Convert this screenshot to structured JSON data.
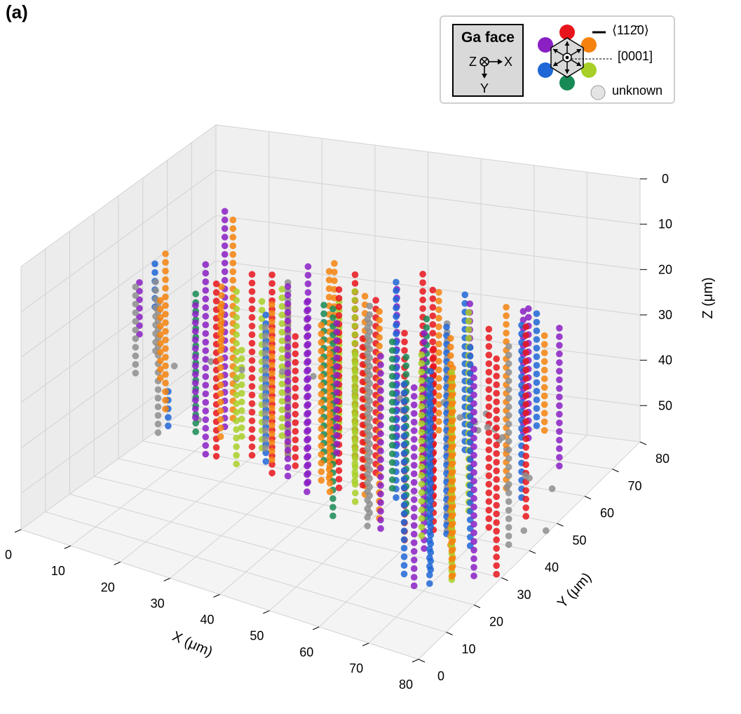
{
  "panel_label": "(a)",
  "legend": {
    "face_title": "Ga face",
    "axis_z": "Z",
    "axis_x": "X",
    "axis_y": "Y",
    "direction_label": "⟨112̄0⟩",
    "zone_label": "[0001]",
    "unknown_label": "unknown",
    "orientation_colors": {
      "top": "#e8141b",
      "top_right": "#f5820d",
      "bottom_right": "#a8cf27",
      "bottom": "#178a55",
      "bottom_left": "#1f66d6",
      "top_left": "#8a1fc4",
      "unknown": "#8e8e8e"
    }
  },
  "chart_data": {
    "type": "scatter",
    "projection": "3d",
    "title": "",
    "xlabel": "X (μm)",
    "ylabel": "Y (μm)",
    "zlabel": "Z (μm)",
    "xlim": [
      0,
      80
    ],
    "ylim": [
      0,
      80
    ],
    "zlim": [
      0,
      58
    ],
    "z_inverted": true,
    "grid": true,
    "x_ticks": [
      "0",
      "10",
      "20",
      "30",
      "40",
      "50",
      "60",
      "70",
      "80"
    ],
    "y_ticks": [
      "0",
      "10",
      "20",
      "30",
      "40",
      "50",
      "60",
      "70",
      "80"
    ],
    "z_ticks": [
      "0",
      "10",
      "20",
      "30",
      "40",
      "50"
    ],
    "point_spacing_z": 1.9,
    "series_colors": {
      "red": "#e8141b",
      "orange": "#f5820d",
      "yellow_green": "#a8cf27",
      "green": "#178a55",
      "blue": "#1f66d6",
      "purple": "#8a1fc4",
      "unknown": "#8e8e8e"
    },
    "threads": [
      {
        "x": 2,
        "y": 52,
        "z0": 28,
        "z1": 58,
        "color": "unknown"
      },
      {
        "x": 3,
        "y": 54,
        "z0": 48,
        "z1": 57,
        "color": "blue"
      },
      {
        "x": 6,
        "y": 36,
        "z0": 16,
        "z1": 28,
        "color": "purple"
      },
      {
        "x": 12,
        "y": 58,
        "z0": 8,
        "z1": 56,
        "color": "purple"
      },
      {
        "x": 15,
        "y": 55,
        "z0": 8,
        "z1": 52,
        "color": "orange"
      },
      {
        "x": 10,
        "y": 34,
        "z0": 10,
        "z1": 20,
        "color": "blue"
      },
      {
        "x": 16,
        "y": 42,
        "z0": 12,
        "z1": 54,
        "color": "purple"
      },
      {
        "x": 14,
        "y": 30,
        "z0": 5,
        "z1": 40,
        "color": "orange"
      },
      {
        "x": 22,
        "y": 60,
        "z0": 24,
        "z1": 58,
        "color": "yellow_green"
      },
      {
        "x": 23,
        "y": 50,
        "z0": 22,
        "z1": 56,
        "color": "yellow_green"
      },
      {
        "x": 30,
        "y": 66,
        "z0": 28,
        "z1": 58,
        "color": "yellow_green"
      },
      {
        "x": 24,
        "y": 40,
        "z0": 28,
        "z1": 48,
        "color": "yellow_green"
      },
      {
        "x": 28,
        "y": 50,
        "z0": 22,
        "z1": 56,
        "color": "orange"
      },
      {
        "x": 26,
        "y": 28,
        "z0": 8,
        "z1": 22,
        "color": "orange"
      },
      {
        "x": 22,
        "y": 10,
        "z0": 0,
        "z1": 16,
        "color": "unknown"
      },
      {
        "x": 34,
        "y": 56,
        "z0": 14,
        "z1": 58,
        "color": "orange"
      },
      {
        "x": 36,
        "y": 60,
        "z0": 18,
        "z1": 58,
        "color": "red"
      },
      {
        "x": 32,
        "y": 42,
        "z0": 12,
        "z1": 50,
        "color": "unknown"
      },
      {
        "x": 38,
        "y": 46,
        "z0": 10,
        "z1": 56,
        "color": "orange"
      },
      {
        "x": 42,
        "y": 64,
        "z0": 22,
        "z1": 58,
        "color": "purple"
      },
      {
        "x": 40,
        "y": 40,
        "z0": 14,
        "z1": 50,
        "color": "green"
      },
      {
        "x": 46,
        "y": 72,
        "z0": 26,
        "z1": 58,
        "color": "orange"
      },
      {
        "x": 44,
        "y": 52,
        "z0": 18,
        "z1": 56,
        "color": "red"
      },
      {
        "x": 42,
        "y": 30,
        "z0": 0,
        "z1": 48,
        "color": "purple"
      },
      {
        "x": 38,
        "y": 24,
        "z0": 0,
        "z1": 44,
        "color": "red"
      },
      {
        "x": 40,
        "y": 20,
        "z0": 4,
        "z1": 40,
        "color": "orange"
      },
      {
        "x": 46,
        "y": 34,
        "z0": 6,
        "z1": 50,
        "color": "red"
      },
      {
        "x": 48,
        "y": 40,
        "z0": 10,
        "z1": 54,
        "color": "orange"
      },
      {
        "x": 50,
        "y": 58,
        "z0": 14,
        "z1": 58,
        "color": "red"
      },
      {
        "x": 52,
        "y": 44,
        "z0": 8,
        "z1": 56,
        "color": "blue"
      },
      {
        "x": 50,
        "y": 24,
        "z0": 4,
        "z1": 50,
        "color": "green"
      },
      {
        "x": 48,
        "y": 18,
        "z0": 0,
        "z1": 42,
        "color": "purple"
      },
      {
        "x": 54,
        "y": 66,
        "z0": 22,
        "z1": 58,
        "color": "blue"
      },
      {
        "x": 56,
        "y": 30,
        "z0": 6,
        "z1": 52,
        "color": "orange"
      },
      {
        "x": 56,
        "y": 50,
        "z0": 12,
        "z1": 58,
        "color": "red"
      },
      {
        "x": 58,
        "y": 60,
        "z0": 20,
        "z1": 58,
        "color": "purple"
      },
      {
        "x": 60,
        "y": 40,
        "z0": 12,
        "z1": 56,
        "color": "green"
      },
      {
        "x": 60,
        "y": 18,
        "z0": 0,
        "z1": 46,
        "color": "unknown"
      },
      {
        "x": 62,
        "y": 28,
        "z0": 8,
        "z1": 54,
        "color": "red"
      },
      {
        "x": 60,
        "y": 76,
        "z0": 30,
        "z1": 58,
        "color": "purple"
      },
      {
        "x": 61,
        "y": 79,
        "z0": 32,
        "z1": 58,
        "color": "blue"
      },
      {
        "x": 62,
        "y": 74,
        "z0": 28,
        "z1": 58,
        "color": "purple"
      },
      {
        "x": 63,
        "y": 78,
        "z0": 36,
        "z1": 58,
        "color": "orange"
      },
      {
        "x": 58,
        "y": 20,
        "z0": 6,
        "z1": 40,
        "color": "red"
      },
      {
        "x": 56,
        "y": 14,
        "z0": 0,
        "z1": 30,
        "color": "purple"
      },
      {
        "x": 64,
        "y": 48,
        "z0": 14,
        "z1": 58,
        "color": "yellow_green"
      },
      {
        "x": 66,
        "y": 36,
        "z0": 10,
        "z1": 56,
        "color": "blue"
      },
      {
        "x": 66,
        "y": 58,
        "z0": 18,
        "z1": 58,
        "color": "orange"
      },
      {
        "x": 68,
        "y": 24,
        "z0": 4,
        "z1": 52,
        "color": "purple"
      },
      {
        "x": 66,
        "y": 16,
        "z0": 2,
        "z1": 36,
        "color": "green"
      },
      {
        "x": 70,
        "y": 44,
        "z0": 14,
        "z1": 58,
        "color": "red"
      },
      {
        "x": 72,
        "y": 66,
        "z0": 26,
        "z1": 58,
        "color": "purple"
      },
      {
        "x": 70,
        "y": 30,
        "z0": 8,
        "z1": 54,
        "color": "orange"
      },
      {
        "x": 72,
        "y": 20,
        "z0": 4,
        "z1": 44,
        "color": "red"
      },
      {
        "x": 74,
        "y": 50,
        "z0": 16,
        "z1": 58,
        "color": "red"
      },
      {
        "x": 74,
        "y": 12,
        "z0": 0,
        "z1": 40,
        "color": "yellow_green"
      },
      {
        "x": 76,
        "y": 26,
        "z0": 6,
        "z1": 50,
        "color": "blue"
      },
      {
        "x": 72,
        "y": 10,
        "z0": 0,
        "z1": 36,
        "color": "green"
      },
      {
        "x": 76,
        "y": 40,
        "z0": 14,
        "z1": 58,
        "color": "unknown"
      },
      {
        "x": 78,
        "y": 8,
        "z0": 0,
        "z1": 44,
        "color": "blue"
      },
      {
        "x": 78,
        "y": 16,
        "z0": 4,
        "z1": 50,
        "color": "orange"
      },
      {
        "x": 80,
        "y": 4,
        "z0": 0,
        "z1": 44,
        "color": "blue"
      },
      {
        "x": 79,
        "y": 30,
        "z0": 10,
        "z1": 58,
        "color": "red"
      },
      {
        "x": 80,
        "y": 20,
        "z0": 6,
        "z1": 52,
        "color": "purple"
      },
      {
        "x": 78,
        "y": 2,
        "z0": 0,
        "z1": 44,
        "color": "purple"
      },
      {
        "x": 80,
        "y": 12,
        "z0": 2,
        "z1": 48,
        "color": "yellow_green"
      },
      {
        "x": 76,
        "y": 2,
        "z0": 0,
        "z1": 42,
        "color": "blue"
      },
      {
        "x": 82,
        "y": 10,
        "z0": 2,
        "z1": 46,
        "color": "orange"
      },
      {
        "x": 60,
        "y": 4,
        "z0": 0,
        "z1": 32,
        "color": "orange"
      },
      {
        "x": 64,
        "y": 6,
        "z0": 0,
        "z1": 34,
        "color": "yellow_green"
      },
      {
        "x": 68,
        "y": 8,
        "z0": 0,
        "z1": 38,
        "color": "purple"
      },
      {
        "x": 52,
        "y": 6,
        "z0": 0,
        "z1": 30,
        "color": "red"
      },
      {
        "x": 46,
        "y": 6,
        "z0": 0,
        "z1": 28,
        "color": "unknown"
      },
      {
        "x": 36,
        "y": 8,
        "z0": 0,
        "z1": 30,
        "color": "orange"
      },
      {
        "x": 30,
        "y": 10,
        "z0": 0,
        "z1": 32,
        "color": "green"
      },
      {
        "x": 32,
        "y": 6,
        "z0": 0,
        "z1": 26,
        "color": "purple"
      },
      {
        "x": 20,
        "y": 6,
        "z0": 0,
        "z1": 20,
        "color": "unknown"
      },
      {
        "x": 26,
        "y": 4,
        "z0": 0,
        "z1": 18,
        "color": "orange"
      },
      {
        "x": 44,
        "y": 10,
        "z0": 0,
        "z1": 34,
        "color": "blue"
      },
      {
        "x": 54,
        "y": 12,
        "z0": 0,
        "z1": 36,
        "color": "orange"
      },
      {
        "x": 34,
        "y": 18,
        "z0": 2,
        "z1": 40,
        "color": "yellow_green"
      },
      {
        "x": 28,
        "y": 22,
        "z0": 4,
        "z1": 42,
        "color": "red"
      },
      {
        "x": 36,
        "y": 34,
        "z0": 8,
        "z1": 50,
        "color": "purple"
      },
      {
        "x": 52,
        "y": 34,
        "z0": 8,
        "z1": 54,
        "color": "unknown"
      },
      {
        "x": 44,
        "y": 44,
        "z0": 12,
        "z1": 54,
        "color": "yellow_green"
      },
      {
        "x": 30,
        "y": 32,
        "z0": 6,
        "z1": 46,
        "color": "red"
      },
      {
        "x": 64,
        "y": 40,
        "z0": 12,
        "z1": 58,
        "color": "unknown"
      },
      {
        "x": 70,
        "y": 56,
        "z0": 20,
        "z1": 58,
        "color": "blue"
      }
    ],
    "scattered_unknown": [
      {
        "x": 18,
        "y": 40,
        "z": 32
      },
      {
        "x": 20,
        "y": 46,
        "z": 38
      },
      {
        "x": 8,
        "y": 46,
        "z": 38
      },
      {
        "x": 6,
        "y": 60,
        "z": 56
      },
      {
        "x": 26,
        "y": 36,
        "z": 30
      },
      {
        "x": 48,
        "y": 62,
        "z": 48
      },
      {
        "x": 52,
        "y": 62,
        "z": 44
      },
      {
        "x": 58,
        "y": 44,
        "z": 32
      },
      {
        "x": 62,
        "y": 54,
        "z": 42
      },
      {
        "x": 68,
        "y": 50,
        "z": 40
      },
      {
        "x": 70,
        "y": 40,
        "z": 34
      },
      {
        "x": 72,
        "y": 44,
        "z": 38
      },
      {
        "x": 74,
        "y": 36,
        "z": 30
      },
      {
        "x": 76,
        "y": 46,
        "z": 46
      },
      {
        "x": 78,
        "y": 52,
        "z": 52
      },
      {
        "x": 80,
        "y": 40,
        "z": 42
      },
      {
        "x": 82,
        "y": 30,
        "z": 38
      },
      {
        "x": 84,
        "y": 34,
        "z": 50
      },
      {
        "x": 82,
        "y": 44,
        "z": 56
      },
      {
        "x": 64,
        "y": 62,
        "z": 52
      },
      {
        "x": 56,
        "y": 70,
        "z": 50
      },
      {
        "x": 40,
        "y": 70,
        "z": 52
      },
      {
        "x": 34,
        "y": 64,
        "z": 46
      },
      {
        "x": 28,
        "y": 60,
        "z": 42
      },
      {
        "x": 24,
        "y": 56,
        "z": 40
      },
      {
        "x": 60,
        "y": 30,
        "z": 24
      },
      {
        "x": 66,
        "y": 28,
        "z": 22
      },
      {
        "x": 70,
        "y": 22,
        "z": 18
      },
      {
        "x": 74,
        "y": 26,
        "z": 22
      },
      {
        "x": 78,
        "y": 34,
        "z": 30
      }
    ]
  }
}
